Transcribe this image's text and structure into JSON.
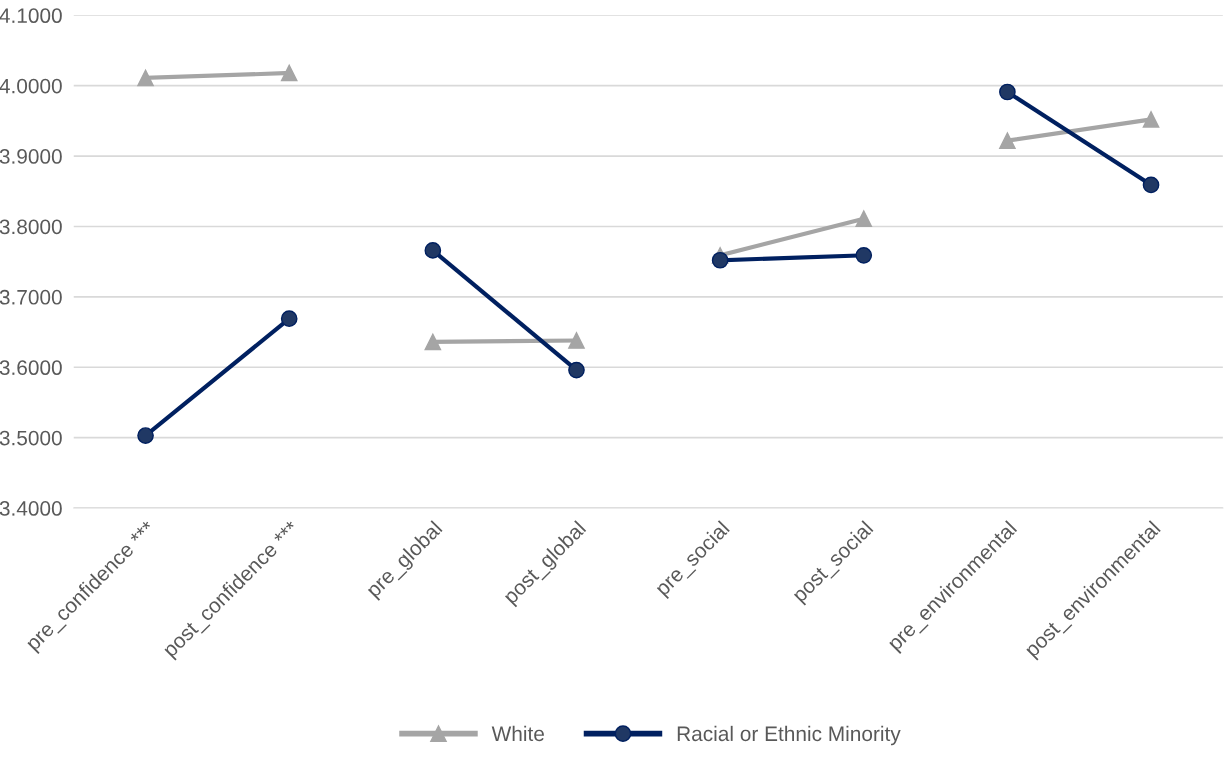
{
  "chart_data": {
    "type": "line",
    "categories": [
      "pre_confidence ***",
      "post_confidence ***",
      "pre_global",
      "post_global",
      "pre_social",
      "post_social",
      "pre_environmental",
      "post_environmental"
    ],
    "series": [
      {
        "name": "White",
        "color": "#a5a5a5",
        "marker": "triangle",
        "values": [
          4.011,
          4.018,
          null,
          null,
          null,
          null,
          null,
          null
        ]
      },
      {
        "color": "#a5a5a5",
        "marker": "triangle",
        "values": [
          null,
          null,
          3.636,
          3.638,
          null,
          null,
          null,
          null
        ]
      },
      {
        "color": "#a5a5a5",
        "marker": "triangle",
        "values": [
          null,
          null,
          null,
          null,
          3.759,
          3.811,
          null,
          null
        ]
      },
      {
        "color": "#a5a5a5",
        "marker": "triangle",
        "values": [
          null,
          null,
          null,
          null,
          null,
          null,
          3.922,
          3.952
        ]
      },
      {
        "name": "Racial or Ethnic Minority",
        "color": "#002060",
        "marker": "circle",
        "values": [
          3.503,
          3.669,
          null,
          null,
          null,
          null,
          null,
          null
        ]
      },
      {
        "color": "#002060",
        "marker": "circle",
        "values": [
          null,
          null,
          3.766,
          3.596,
          null,
          null,
          null,
          null
        ]
      },
      {
        "color": "#002060",
        "marker": "circle",
        "values": [
          null,
          null,
          null,
          null,
          3.752,
          3.759,
          null,
          null
        ]
      },
      {
        "color": "#002060",
        "marker": "circle",
        "values": [
          null,
          null,
          null,
          null,
          null,
          null,
          3.991,
          3.859
        ]
      }
    ],
    "ylim": [
      3.4,
      4.1
    ],
    "yticks": [
      {
        "value": 3.4,
        "label": "3.4000"
      },
      {
        "value": 3.5,
        "label": "3.5000"
      },
      {
        "value": 3.6,
        "label": "3.6000"
      },
      {
        "value": 3.7,
        "label": "3.7000"
      },
      {
        "value": 3.8,
        "label": "3.8000"
      },
      {
        "value": 3.9,
        "label": "3.9000"
      },
      {
        "value": 4.0,
        "label": "4.0000"
      },
      {
        "value": 4.1,
        "label": "4.1000"
      }
    ],
    "grid": "y",
    "legend": "bottom"
  }
}
